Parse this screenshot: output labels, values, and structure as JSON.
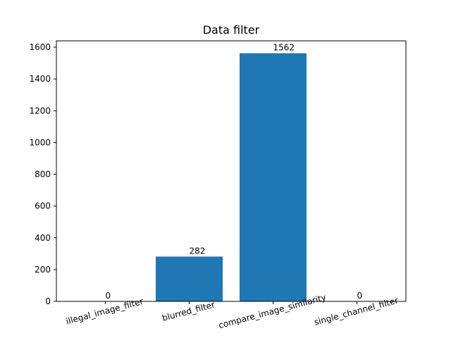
{
  "chart_data": {
    "type": "bar",
    "title": "Data filter",
    "xlabel": "",
    "ylabel": "",
    "categories": [
      "illegal_image_filter",
      "blurred_filter",
      "compare_image_similarity",
      "single_channel_filter"
    ],
    "values": [
      0,
      282,
      1562,
      0
    ],
    "ylim": [
      0,
      1640
    ],
    "yticks": [
      0,
      200,
      400,
      600,
      800,
      1000,
      1200,
      1400,
      1600
    ],
    "bar_color": "#1f77b4",
    "grid": false,
    "legend": "none",
    "xtick_rotation_deg": 15
  }
}
